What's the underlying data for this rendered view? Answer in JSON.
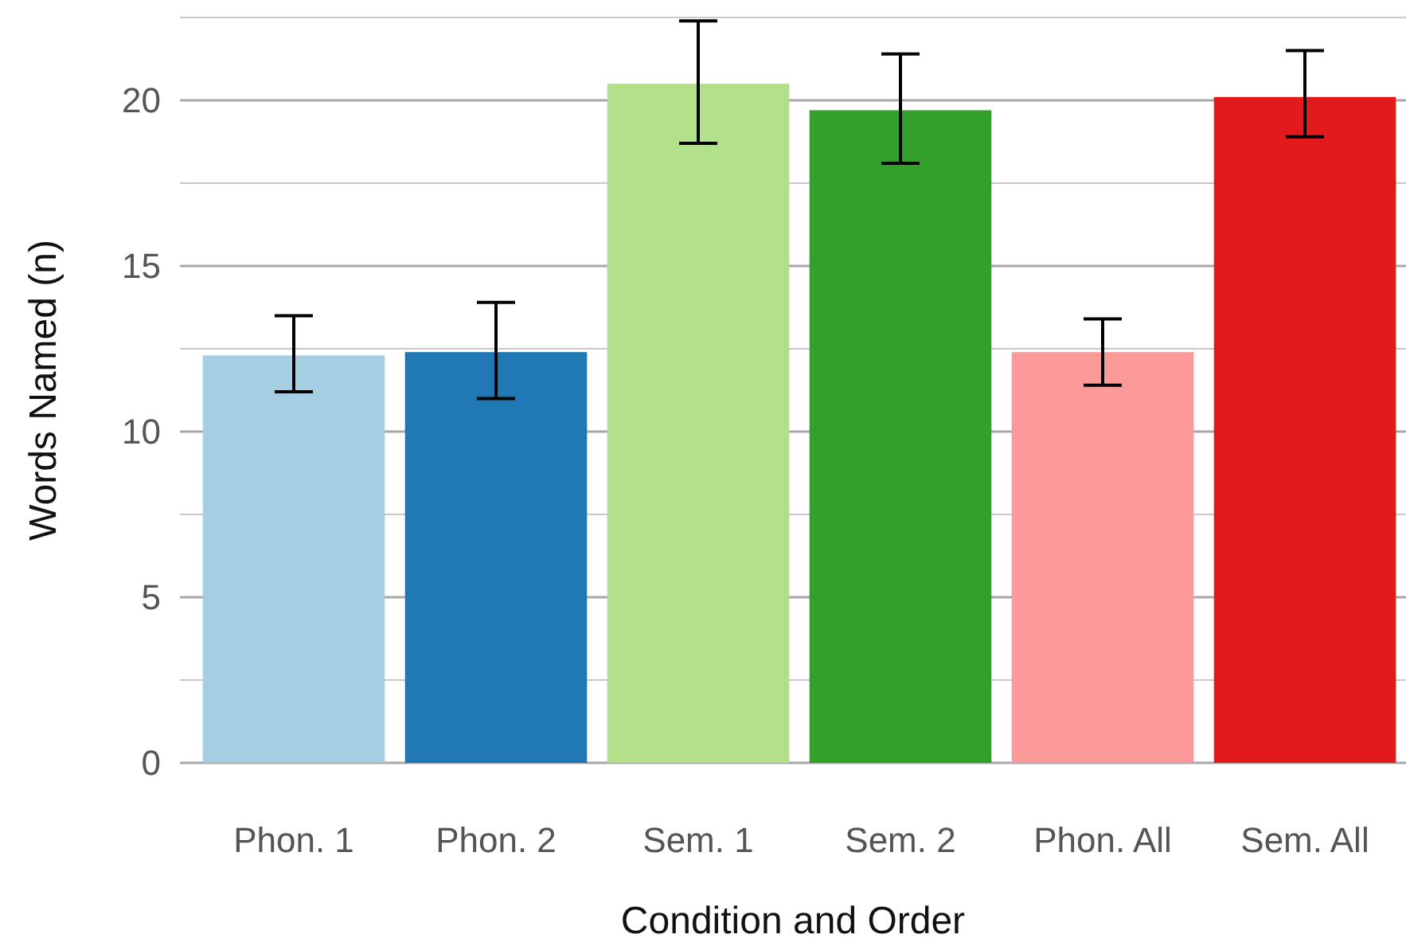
{
  "chart_data": {
    "type": "bar",
    "xlabel": "Condition and Order",
    "ylabel": "Words Named (n)",
    "categories": [
      "Phon. 1",
      "Phon. 2",
      "Sem. 1",
      "Sem. 2",
      "Phon. All",
      "Sem. All"
    ],
    "values": [
      12.3,
      12.4,
      20.5,
      19.7,
      12.4,
      20.1
    ],
    "colors": [
      "#a6cee3",
      "#1f78b4",
      "#b2df8a",
      "#33a02c",
      "#fb9a99",
      "#e31a1c"
    ],
    "errors": [
      [
        11.2,
        13.5
      ],
      [
        11.0,
        13.9
      ],
      [
        18.7,
        22.4
      ],
      [
        18.1,
        21.4
      ],
      [
        11.4,
        13.4
      ],
      [
        18.9,
        21.5
      ]
    ],
    "ylim": [
      0,
      22.5
    ],
    "yticks": [
      0,
      {
        "value": 2.5,
        "label": null
      },
      5,
      {
        "value": 7.5,
        "label": null
      },
      10,
      {
        "value": 12.5,
        "label": null
      },
      15,
      {
        "value": 17.5,
        "label": null
      },
      20,
      {
        "value": 22.5,
        "label": null
      }
    ],
    "grid": "y"
  }
}
